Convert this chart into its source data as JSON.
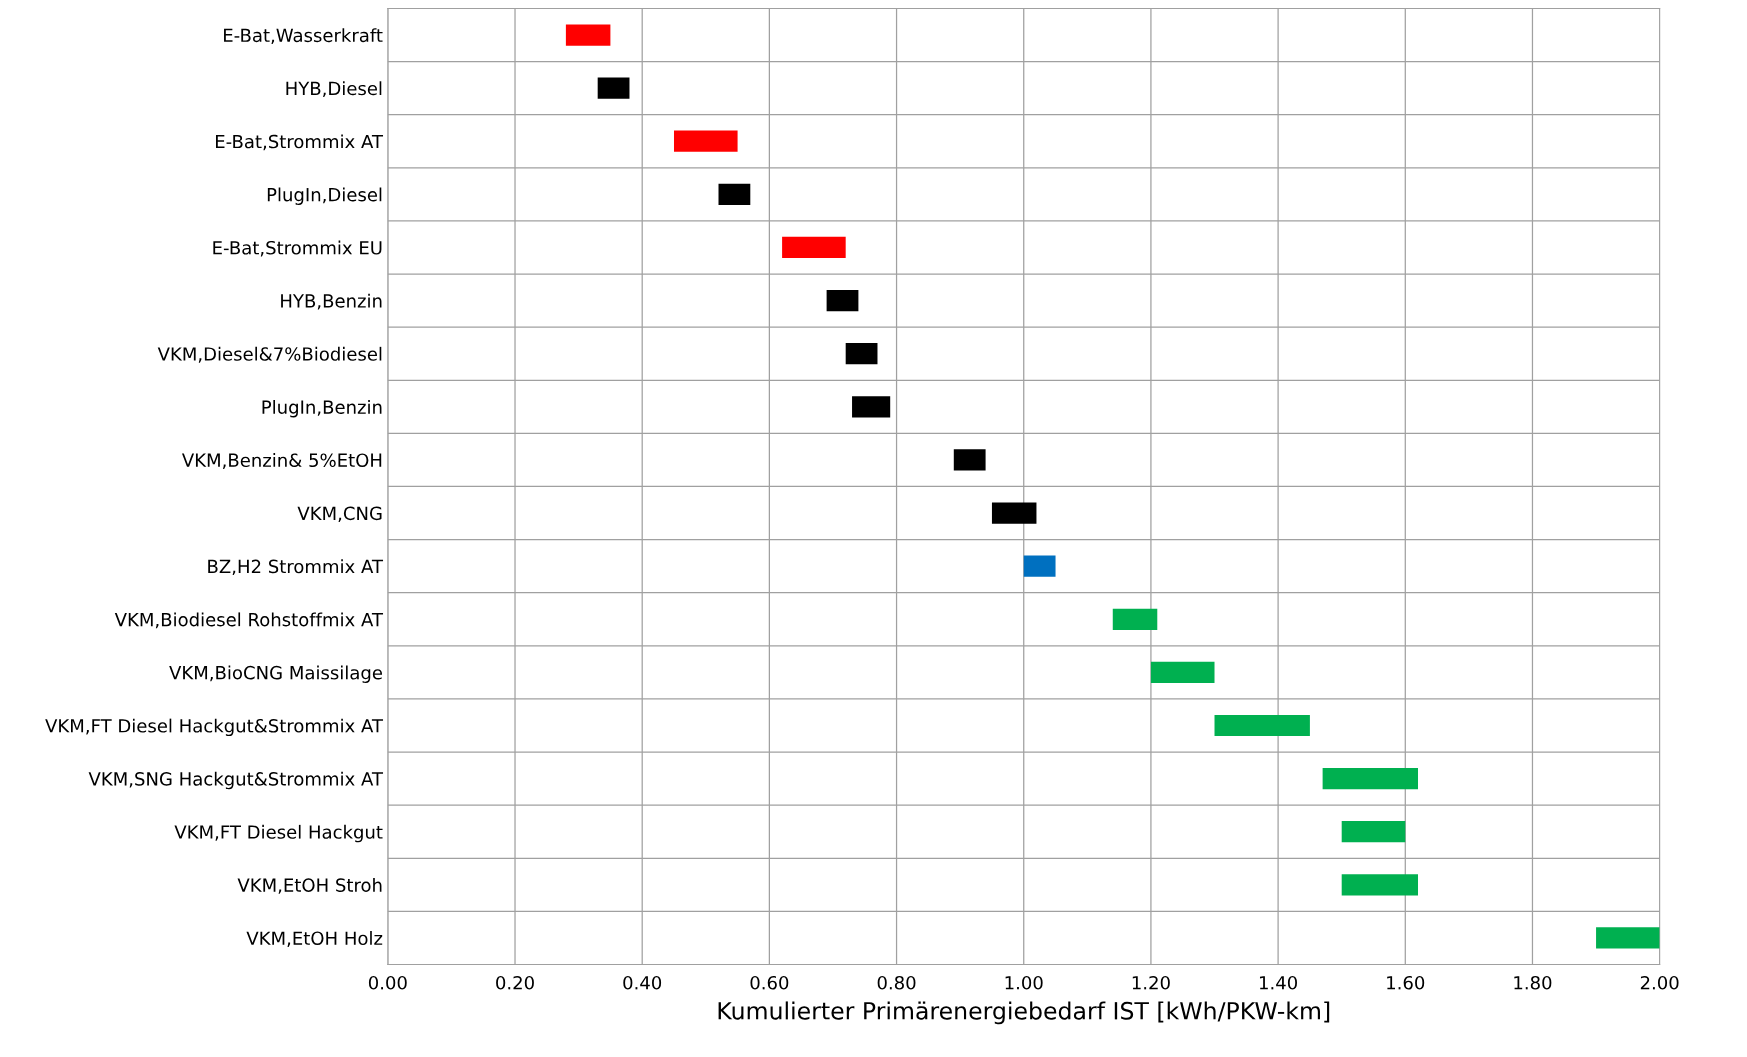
{
  "chart_data": {
    "type": "bar",
    "orientation": "horizontal",
    "xlabel": "Kumulierter Primärenergiebedarf IST [kWh/PKW-km]",
    "categories": [
      "E-Bat,Wasserkraft",
      "HYB,Diesel",
      "E-Bat,Strommix AT",
      "PlugIn,Diesel",
      "E-Bat,Strommix EU",
      "HYB,Benzin",
      "VKM,Diesel&7%Biodiesel",
      "PlugIn,Benzin",
      "VKM,Benzin& 5%EtOH",
      "VKM,CNG",
      "BZ,H2 Strommix AT",
      "VKM,Biodiesel Rohstoffmix AT",
      "VKM,BioCNG Maissilage",
      "VKM,FT Diesel Hackgut&Strommix AT",
      "VKM,SNG Hackgut&Strommix AT",
      "VKM,FT Diesel Hackgut",
      "VKM,EtOH Stroh",
      "VKM,EtOH Holz"
    ],
    "base": [
      0.28,
      0.33,
      0.45,
      0.52,
      0.62,
      0.69,
      0.72,
      0.73,
      0.89,
      0.95,
      1.0,
      1.14,
      1.2,
      1.3,
      1.47,
      1.5,
      1.5,
      1.9
    ],
    "values": [
      0.07,
      0.05,
      0.1,
      0.05,
      0.1,
      0.05,
      0.05,
      0.06,
      0.05,
      0.07,
      0.05,
      0.07,
      0.1,
      0.15,
      0.15,
      0.1,
      0.12,
      0.1
    ],
    "colors": [
      "#ff0000",
      "#000000",
      "#ff0000",
      "#000000",
      "#ff0000",
      "#000000",
      "#000000",
      "#000000",
      "#000000",
      "#000000",
      "#0070c0",
      "#00b050",
      "#00b050",
      "#00b050",
      "#00b050",
      "#00b050",
      "#00b050",
      "#00b050"
    ],
    "xlim": [
      0,
      2
    ],
    "xticks": [
      {
        "value": 0,
        "label": "0.00"
      },
      {
        "value": 0.2,
        "label": "0.20"
      },
      {
        "value": 0.4,
        "label": "0.40"
      },
      {
        "value": 0.6,
        "label": "0.60"
      },
      {
        "value": 0.8,
        "label": "0.80"
      },
      {
        "value": 1.0,
        "label": "1.00"
      },
      {
        "value": 1.2,
        "label": "1.20"
      },
      {
        "value": 1.4,
        "label": "1.40"
      },
      {
        "value": 1.6,
        "label": "1.60"
      },
      {
        "value": 1.8,
        "label": "1.80"
      },
      {
        "value": 2.0,
        "label": "2.00"
      }
    ],
    "grid": true
  }
}
